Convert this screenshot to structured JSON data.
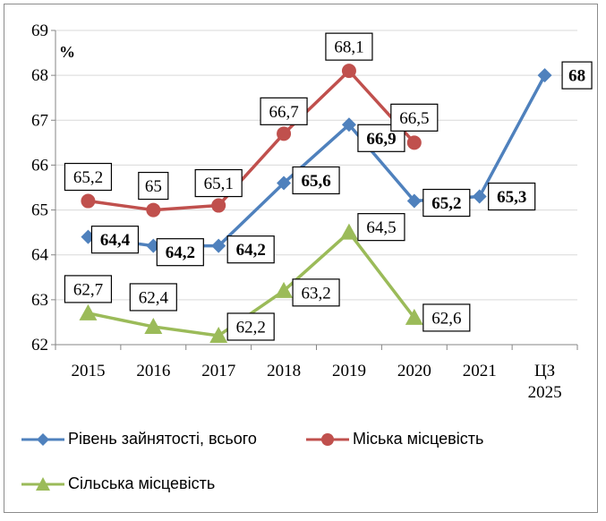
{
  "chart_data": {
    "type": "line",
    "title": "",
    "unit_label": "%",
    "categories": [
      "2015",
      "2016",
      "2017",
      "2018",
      "2019",
      "2020",
      "2021",
      "ЦЗ 2025"
    ],
    "category_lines": [
      [
        "2015"
      ],
      [
        "2016"
      ],
      [
        "2017"
      ],
      [
        "2018"
      ],
      [
        "2019"
      ],
      [
        "2020"
      ],
      [
        "2021"
      ],
      [
        "ЦЗ",
        "2025"
      ]
    ],
    "ylim": [
      62,
      69
    ],
    "yticks": [
      "62",
      "63",
      "64",
      "65",
      "66",
      "67",
      "68",
      "69"
    ],
    "grid": true,
    "legend_position": "bottom",
    "series": [
      {
        "name": "Рівень зайнятості, всього",
        "color": "#4f81bd",
        "marker": "diamond",
        "values": [
          64.4,
          64.2,
          64.2,
          65.6,
          66.9,
          65.2,
          65.3,
          68
        ],
        "labels": [
          "64,4",
          "64,2",
          "64,2",
          "65,6",
          "66,9",
          "65,2",
          "65,3",
          "68"
        ],
        "label_bold": true
      },
      {
        "name": "Міська місцевість",
        "color": "#c0504d",
        "marker": "circle",
        "values": [
          65.2,
          65,
          65.1,
          66.7,
          68.1,
          66.5,
          null,
          null
        ],
        "labels": [
          "65,2",
          "65",
          "65,1",
          "66,7",
          "68,1",
          "66,5",
          null,
          null
        ],
        "label_bold": false
      },
      {
        "name": "Сільська місцевість",
        "color": "#9bbb59",
        "marker": "triangle",
        "values": [
          62.7,
          62.4,
          62.2,
          63.2,
          64.5,
          62.6,
          null,
          null
        ],
        "labels": [
          "62,7",
          "62,4",
          "62,2",
          "63,2",
          "64,5",
          "62,6",
          null,
          null
        ],
        "label_bold": false
      }
    ]
  }
}
